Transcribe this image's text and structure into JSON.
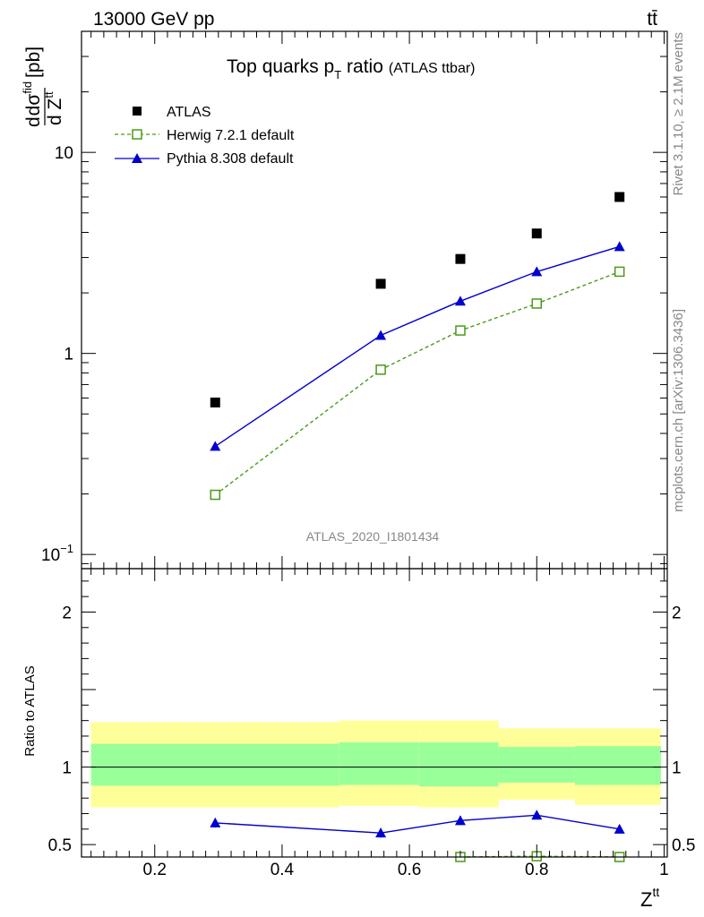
{
  "header": {
    "energy_label": "13000 GeV pp",
    "process_label": "tt̄"
  },
  "side_labels": {
    "rivet": "Rivet 3.1.10, ≥ 2.1M events",
    "mcplots": "mcplots.cern.ch [arXiv:1306.3436]"
  },
  "chart_data": {
    "type": "scatter",
    "title": "Top quarks p",
    "title_sub": "T",
    "title_rest": " ratio",
    "title_note": "(ATLAS ttbar)",
    "watermark": "ATLAS_2020_I1801434",
    "ylabel_parts": {
      "d1": "d",
      "sigma": "dσ",
      "fid": "fid",
      "denom": "d Z",
      "tt": "tt",
      "unit": "[pb]"
    },
    "xlabel": "Z",
    "xlabel_sup": "tt",
    "ratio_ylabel": "Ratio to ATLAS",
    "xlim": [
      0.085,
      1.005
    ],
    "ylim": [
      0.085,
      40
    ],
    "yscale": "log",
    "ratio_ylim": [
      0.42,
      2.28
    ],
    "x_ticks": [
      {
        "value": 0.2,
        "label": "0.2"
      },
      {
        "value": 0.4,
        "label": "0.4"
      },
      {
        "value": 0.6,
        "label": "0.6"
      },
      {
        "value": 0.8,
        "label": "0.8"
      },
      {
        "value": 1.0,
        "label": "1"
      }
    ],
    "y_ticks": [
      {
        "value": 0.1,
        "base": "10",
        "exp": "−1"
      },
      {
        "value": 1,
        "base": "1",
        "exp": ""
      },
      {
        "value": 10,
        "base": "10",
        "exp": ""
      }
    ],
    "ratio_ticks": [
      {
        "value": 0.5,
        "label": "0.5"
      },
      {
        "value": 1,
        "label": "1"
      },
      {
        "value": 2,
        "label": "2"
      }
    ],
    "legend_position": "top-left",
    "series": [
      {
        "name": "ATLAS",
        "marker": "square-filled",
        "color": "#000000",
        "x": [
          0.295,
          0.555,
          0.68,
          0.8,
          0.93
        ],
        "y": [
          0.57,
          2.22,
          2.95,
          3.95,
          6.0
        ]
      },
      {
        "name": "Herwig 7.2.1 default",
        "marker": "square-open",
        "line": "dashed",
        "color": "#4a9a1a",
        "x": [
          0.295,
          0.555,
          0.68,
          0.8,
          0.93
        ],
        "y": [
          0.198,
          0.83,
          1.3,
          1.77,
          2.55
        ]
      },
      {
        "name": "Pythia 8.308 default",
        "marker": "triangle-filled",
        "line": "solid",
        "color": "#0000cc",
        "x": [
          0.295,
          0.555,
          0.68,
          0.8,
          0.93
        ],
        "y": [
          0.345,
          1.23,
          1.82,
          2.55,
          3.4
        ]
      }
    ],
    "ratio_series": [
      {
        "name": "Herwig 7.2.1 default",
        "color": "#4a9a1a",
        "x": [
          0.68,
          0.8,
          0.93
        ],
        "y": [
          0.405,
          0.425,
          0.39
        ],
        "lead_in": {
          "x": 0.61,
          "y": 0.335
        }
      },
      {
        "name": "Pythia 8.308 default",
        "color": "#0000cc",
        "x": [
          0.295,
          0.555,
          0.68,
          0.8,
          0.93
        ],
        "y": [
          0.64,
          0.575,
          0.655,
          0.69,
          0.6
        ],
        "err": [
          0.03,
          0.03,
          0.03,
          0.025,
          0.015
        ]
      }
    ],
    "bands": [
      {
        "x0": 0.1,
        "x1": 0.49,
        "yellow": [
          0.74,
          1.29
        ],
        "green": [
          0.88,
          1.15
        ]
      },
      {
        "x0": 0.49,
        "x1": 0.615,
        "yellow": [
          0.75,
          1.3
        ],
        "green": [
          0.885,
          1.16
        ]
      },
      {
        "x0": 0.615,
        "x1": 0.74,
        "yellow": [
          0.74,
          1.3
        ],
        "green": [
          0.875,
          1.16
        ]
      },
      {
        "x0": 0.74,
        "x1": 0.86,
        "yellow": [
          0.79,
          1.25
        ],
        "green": [
          0.9,
          1.13
        ]
      },
      {
        "x0": 0.86,
        "x1": 0.995,
        "yellow": [
          0.755,
          1.25
        ],
        "green": [
          0.885,
          1.135
        ]
      }
    ],
    "band_colors": {
      "yellow": "#ffff99",
      "green": "#99ff99"
    }
  }
}
